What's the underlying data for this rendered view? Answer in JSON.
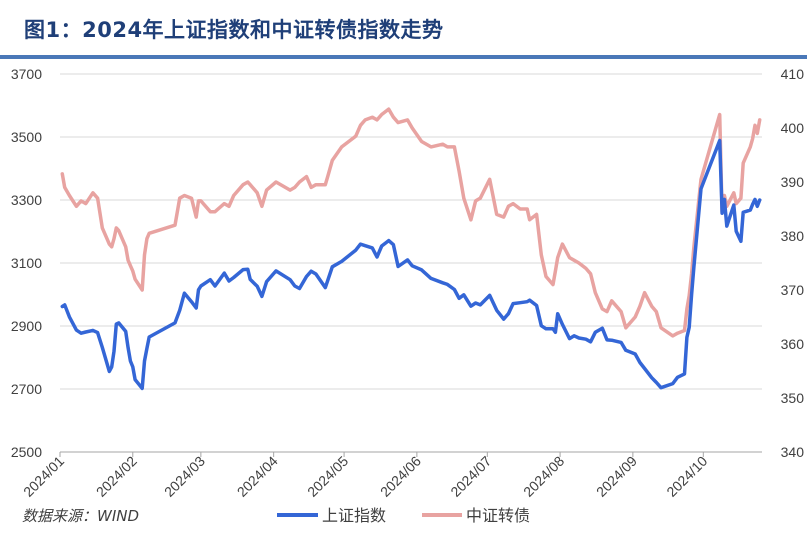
{
  "header": {
    "title": "图1：2024年上证指数和中证转债指数走势"
  },
  "source": "数据来源：WIND",
  "colors": {
    "title": "#1f3f78",
    "rule": "#4a78b8",
    "sse": "#3466d6",
    "cb": "#e8a3a1",
    "axis": "#a6a6a6"
  },
  "chart_data": {
    "type": "line",
    "title": "图1：2024年上证指数和中证转债指数走势",
    "x_type": "date",
    "xlim": [
      "2024-01-01",
      "2024-10-26"
    ],
    "x_ticks": [
      "2024/01",
      "2024/02",
      "2024/03",
      "2024/04",
      "2024/05",
      "2024/06",
      "2024/07",
      "2024/08",
      "2024/09",
      "2024/10"
    ],
    "y_left": {
      "lim": [
        2500,
        3700
      ],
      "ticks": [
        "2500",
        "2700",
        "2900",
        "3100",
        "3300",
        "3500",
        "3700"
      ]
    },
    "y_right": {
      "lim": [
        340,
        410
      ],
      "ticks": [
        "340",
        "350",
        "360",
        "370",
        "380",
        "390",
        "400",
        "410"
      ]
    },
    "grid": "horizontal",
    "legend": "bottom-center",
    "series": [
      {
        "name": "上证指数",
        "axis": "left",
        "color": "#3466d6",
        "points": [
          [
            "2024-01-02",
            2962
          ],
          [
            "2024-01-03",
            2967
          ],
          [
            "2024-01-05",
            2929
          ],
          [
            "2024-01-08",
            2887
          ],
          [
            "2024-01-10",
            2877
          ],
          [
            "2024-01-12",
            2881
          ],
          [
            "2024-01-15",
            2886
          ],
          [
            "2024-01-17",
            2879
          ],
          [
            "2024-01-19",
            2832
          ],
          [
            "2024-01-22",
            2756
          ],
          [
            "2024-01-23",
            2770
          ],
          [
            "2024-01-24",
            2820
          ],
          [
            "2024-01-25",
            2906
          ],
          [
            "2024-01-26",
            2910
          ],
          [
            "2024-01-29",
            2883
          ],
          [
            "2024-01-30",
            2831
          ],
          [
            "2024-01-31",
            2789
          ],
          [
            "2024-02-01",
            2770
          ],
          [
            "2024-02-02",
            2730
          ],
          [
            "2024-02-05",
            2702
          ],
          [
            "2024-02-06",
            2789
          ],
          [
            "2024-02-07",
            2829
          ],
          [
            "2024-02-08",
            2865
          ],
          [
            "2024-02-19",
            2910
          ],
          [
            "2024-02-21",
            2950
          ],
          [
            "2024-02-23",
            3004
          ],
          [
            "2024-02-26",
            2977
          ],
          [
            "2024-02-28",
            2957
          ],
          [
            "2024-02-29",
            3015
          ],
          [
            "2024-03-01",
            3027
          ],
          [
            "2024-03-05",
            3047
          ],
          [
            "2024-03-07",
            3027
          ],
          [
            "2024-03-11",
            3068
          ],
          [
            "2024-03-13",
            3043
          ],
          [
            "2024-03-15",
            3054
          ],
          [
            "2024-03-19",
            3079
          ],
          [
            "2024-03-21",
            3080
          ],
          [
            "2024-03-22",
            3048
          ],
          [
            "2024-03-25",
            3026
          ],
          [
            "2024-03-27",
            2994
          ],
          [
            "2024-03-29",
            3041
          ],
          [
            "2024-04-02",
            3075
          ],
          [
            "2024-04-08",
            3047
          ],
          [
            "2024-04-10",
            3027
          ],
          [
            "2024-04-12",
            3019
          ],
          [
            "2024-04-15",
            3057
          ],
          [
            "2024-04-17",
            3074
          ],
          [
            "2024-04-19",
            3065
          ],
          [
            "2024-04-23",
            3022
          ],
          [
            "2024-04-24",
            3044
          ],
          [
            "2024-04-26",
            3088
          ],
          [
            "2024-04-30",
            3105
          ],
          [
            "2024-05-06",
            3141
          ],
          [
            "2024-05-08",
            3160
          ],
          [
            "2024-05-10",
            3155
          ],
          [
            "2024-05-13",
            3148
          ],
          [
            "2024-05-15",
            3119
          ],
          [
            "2024-05-17",
            3154
          ],
          [
            "2024-05-20",
            3171
          ],
          [
            "2024-05-22",
            3158
          ],
          [
            "2024-05-24",
            3089
          ],
          [
            "2024-05-28",
            3110
          ],
          [
            "2024-05-30",
            3091
          ],
          [
            "2024-06-03",
            3078
          ],
          [
            "2024-06-07",
            3051
          ],
          [
            "2024-06-12",
            3037
          ],
          [
            "2024-06-14",
            3032
          ],
          [
            "2024-06-17",
            3016
          ],
          [
            "2024-06-19",
            2988
          ],
          [
            "2024-06-21",
            2999
          ],
          [
            "2024-06-24",
            2963
          ],
          [
            "2024-06-26",
            2973
          ],
          [
            "2024-06-28",
            2967
          ],
          [
            "2024-07-02",
            2997
          ],
          [
            "2024-07-05",
            2950
          ],
          [
            "2024-07-08",
            2922
          ],
          [
            "2024-07-10",
            2939
          ],
          [
            "2024-07-12",
            2971
          ],
          [
            "2024-07-15",
            2974
          ],
          [
            "2024-07-18",
            2977
          ],
          [
            "2024-07-19",
            2982
          ],
          [
            "2024-07-22",
            2965
          ],
          [
            "2024-07-24",
            2901
          ],
          [
            "2024-07-26",
            2891
          ],
          [
            "2024-07-29",
            2891
          ],
          [
            "2024-07-30",
            2880
          ],
          [
            "2024-07-31",
            2939
          ],
          [
            "2024-08-02",
            2905
          ],
          [
            "2024-08-05",
            2860
          ],
          [
            "2024-08-07",
            2869
          ],
          [
            "2024-08-09",
            2862
          ],
          [
            "2024-08-12",
            2858
          ],
          [
            "2024-08-14",
            2850
          ],
          [
            "2024-08-16",
            2880
          ],
          [
            "2024-08-19",
            2893
          ],
          [
            "2024-08-21",
            2856
          ],
          [
            "2024-08-23",
            2855
          ],
          [
            "2024-08-27",
            2848
          ],
          [
            "2024-08-29",
            2823
          ],
          [
            "2024-09-02",
            2811
          ],
          [
            "2024-09-04",
            2784
          ],
          [
            "2024-09-06",
            2765
          ],
          [
            "2024-09-09",
            2736
          ],
          [
            "2024-09-11",
            2721
          ],
          [
            "2024-09-13",
            2704
          ],
          [
            "2024-09-18",
            2717
          ],
          [
            "2024-09-20",
            2737
          ],
          [
            "2024-09-23",
            2748
          ],
          [
            "2024-09-24",
            2864
          ],
          [
            "2024-09-25",
            2896
          ],
          [
            "2024-09-26",
            3000
          ],
          [
            "2024-09-27",
            3088
          ],
          [
            "2024-09-30",
            3336
          ],
          [
            "2024-10-08",
            3489
          ],
          [
            "2024-10-09",
            3258
          ],
          [
            "2024-10-10",
            3302
          ],
          [
            "2024-10-11",
            3217
          ],
          [
            "2024-10-14",
            3284
          ],
          [
            "2024-10-15",
            3201
          ],
          [
            "2024-10-17",
            3169
          ],
          [
            "2024-10-18",
            3261
          ],
          [
            "2024-10-21",
            3268
          ],
          [
            "2024-10-22",
            3286
          ],
          [
            "2024-10-23",
            3302
          ],
          [
            "2024-10-24",
            3280
          ],
          [
            "2024-10-25",
            3300
          ]
        ]
      },
      {
        "name": "中证转债",
        "axis": "right",
        "color": "#e8a3a1",
        "points": [
          [
            "2024-01-02",
            391.5
          ],
          [
            "2024-01-03",
            389.0
          ],
          [
            "2024-01-05",
            387.5
          ],
          [
            "2024-01-08",
            385.5
          ],
          [
            "2024-01-10",
            386.5
          ],
          [
            "2024-01-12",
            386.0
          ],
          [
            "2024-01-15",
            388.0
          ],
          [
            "2024-01-17",
            387.0
          ],
          [
            "2024-01-19",
            381.5
          ],
          [
            "2024-01-22",
            378.5
          ],
          [
            "2024-01-23",
            378.0
          ],
          [
            "2024-01-24",
            379.5
          ],
          [
            "2024-01-25",
            381.5
          ],
          [
            "2024-01-26",
            381.0
          ],
          [
            "2024-01-29",
            378.0
          ],
          [
            "2024-01-30",
            375.5
          ],
          [
            "2024-01-31",
            374.5
          ],
          [
            "2024-02-01",
            373.5
          ],
          [
            "2024-02-02",
            372.0
          ],
          [
            "2024-02-05",
            370.0
          ],
          [
            "2024-02-06",
            376.5
          ],
          [
            "2024-02-07",
            379.5
          ],
          [
            "2024-02-08",
            380.5
          ],
          [
            "2024-02-19",
            382.0
          ],
          [
            "2024-02-21",
            387.0
          ],
          [
            "2024-02-23",
            387.5
          ],
          [
            "2024-02-26",
            387.0
          ],
          [
            "2024-02-28",
            383.5
          ],
          [
            "2024-02-29",
            386.5
          ],
          [
            "2024-03-01",
            386.5
          ],
          [
            "2024-03-05",
            384.5
          ],
          [
            "2024-03-07",
            384.5
          ],
          [
            "2024-03-11",
            386.0
          ],
          [
            "2024-03-13",
            385.5
          ],
          [
            "2024-03-15",
            387.5
          ],
          [
            "2024-03-19",
            389.5
          ],
          [
            "2024-03-21",
            390.0
          ],
          [
            "2024-03-22",
            389.5
          ],
          [
            "2024-03-25",
            388.0
          ],
          [
            "2024-03-27",
            385.5
          ],
          [
            "2024-03-29",
            388.5
          ],
          [
            "2024-04-02",
            390.0
          ],
          [
            "2024-04-08",
            388.5
          ],
          [
            "2024-04-10",
            389.0
          ],
          [
            "2024-04-12",
            390.0
          ],
          [
            "2024-04-15",
            391.0
          ],
          [
            "2024-04-17",
            389.0
          ],
          [
            "2024-04-19",
            389.5
          ],
          [
            "2024-04-23",
            389.5
          ],
          [
            "2024-04-24",
            391.0
          ],
          [
            "2024-04-26",
            394.0
          ],
          [
            "2024-04-30",
            396.5
          ],
          [
            "2024-05-06",
            398.5
          ],
          [
            "2024-05-08",
            400.5
          ],
          [
            "2024-05-10",
            401.5
          ],
          [
            "2024-05-13",
            402.0
          ],
          [
            "2024-05-15",
            401.5
          ],
          [
            "2024-05-17",
            402.5
          ],
          [
            "2024-05-20",
            403.5
          ],
          [
            "2024-05-22",
            402.0
          ],
          [
            "2024-05-24",
            401.0
          ],
          [
            "2024-05-28",
            401.5
          ],
          [
            "2024-05-30",
            400.0
          ],
          [
            "2024-06-03",
            397.5
          ],
          [
            "2024-06-07",
            396.5
          ],
          [
            "2024-06-12",
            397.0
          ],
          [
            "2024-06-14",
            396.5
          ],
          [
            "2024-06-17",
            396.5
          ],
          [
            "2024-06-19",
            392.0
          ],
          [
            "2024-06-21",
            387.0
          ],
          [
            "2024-06-24",
            383.0
          ],
          [
            "2024-06-26",
            386.5
          ],
          [
            "2024-06-28",
            387.0
          ],
          [
            "2024-07-02",
            390.5
          ],
          [
            "2024-07-05",
            384.0
          ],
          [
            "2024-07-08",
            383.5
          ],
          [
            "2024-07-10",
            385.5
          ],
          [
            "2024-07-12",
            386.0
          ],
          [
            "2024-07-15",
            385.0
          ],
          [
            "2024-07-18",
            385.0
          ],
          [
            "2024-07-19",
            383.0
          ],
          [
            "2024-07-22",
            384.0
          ],
          [
            "2024-07-24",
            376.5
          ],
          [
            "2024-07-26",
            372.5
          ],
          [
            "2024-07-29",
            371.0
          ],
          [
            "2024-07-30",
            373.5
          ],
          [
            "2024-07-31",
            376.0
          ],
          [
            "2024-08-02",
            378.5
          ],
          [
            "2024-08-05",
            376.0
          ],
          [
            "2024-08-07",
            375.5
          ],
          [
            "2024-08-09",
            375.0
          ],
          [
            "2024-08-12",
            374.0
          ],
          [
            "2024-08-14",
            373.0
          ],
          [
            "2024-08-16",
            369.5
          ],
          [
            "2024-08-19",
            366.5
          ],
          [
            "2024-08-21",
            366.0
          ],
          [
            "2024-08-23",
            368.0
          ],
          [
            "2024-08-27",
            366.0
          ],
          [
            "2024-08-29",
            363.0
          ],
          [
            "2024-09-02",
            365.0
          ],
          [
            "2024-09-04",
            367.0
          ],
          [
            "2024-09-06",
            369.5
          ],
          [
            "2024-09-09",
            367.0
          ],
          [
            "2024-09-11",
            366.0
          ],
          [
            "2024-09-13",
            363.0
          ],
          [
            "2024-09-18",
            361.5
          ],
          [
            "2024-09-20",
            362.0
          ],
          [
            "2024-09-23",
            362.5
          ],
          [
            "2024-09-24",
            366.5
          ],
          [
            "2024-09-25",
            369.0
          ],
          [
            "2024-09-26",
            373.0
          ],
          [
            "2024-09-27",
            378.0
          ],
          [
            "2024-09-30",
            390.5
          ],
          [
            "2024-10-08",
            402.5
          ],
          [
            "2024-10-09",
            384.5
          ],
          [
            "2024-10-10",
            387.5
          ],
          [
            "2024-10-11",
            385.5
          ],
          [
            "2024-10-14",
            388.0
          ],
          [
            "2024-10-15",
            386.0
          ],
          [
            "2024-10-17",
            387.0
          ],
          [
            "2024-10-18",
            393.5
          ],
          [
            "2024-10-21",
            396.5
          ],
          [
            "2024-10-22",
            398.0
          ],
          [
            "2024-10-23",
            400.5
          ],
          [
            "2024-10-24",
            399.0
          ],
          [
            "2024-10-25",
            401.5
          ]
        ]
      }
    ]
  }
}
